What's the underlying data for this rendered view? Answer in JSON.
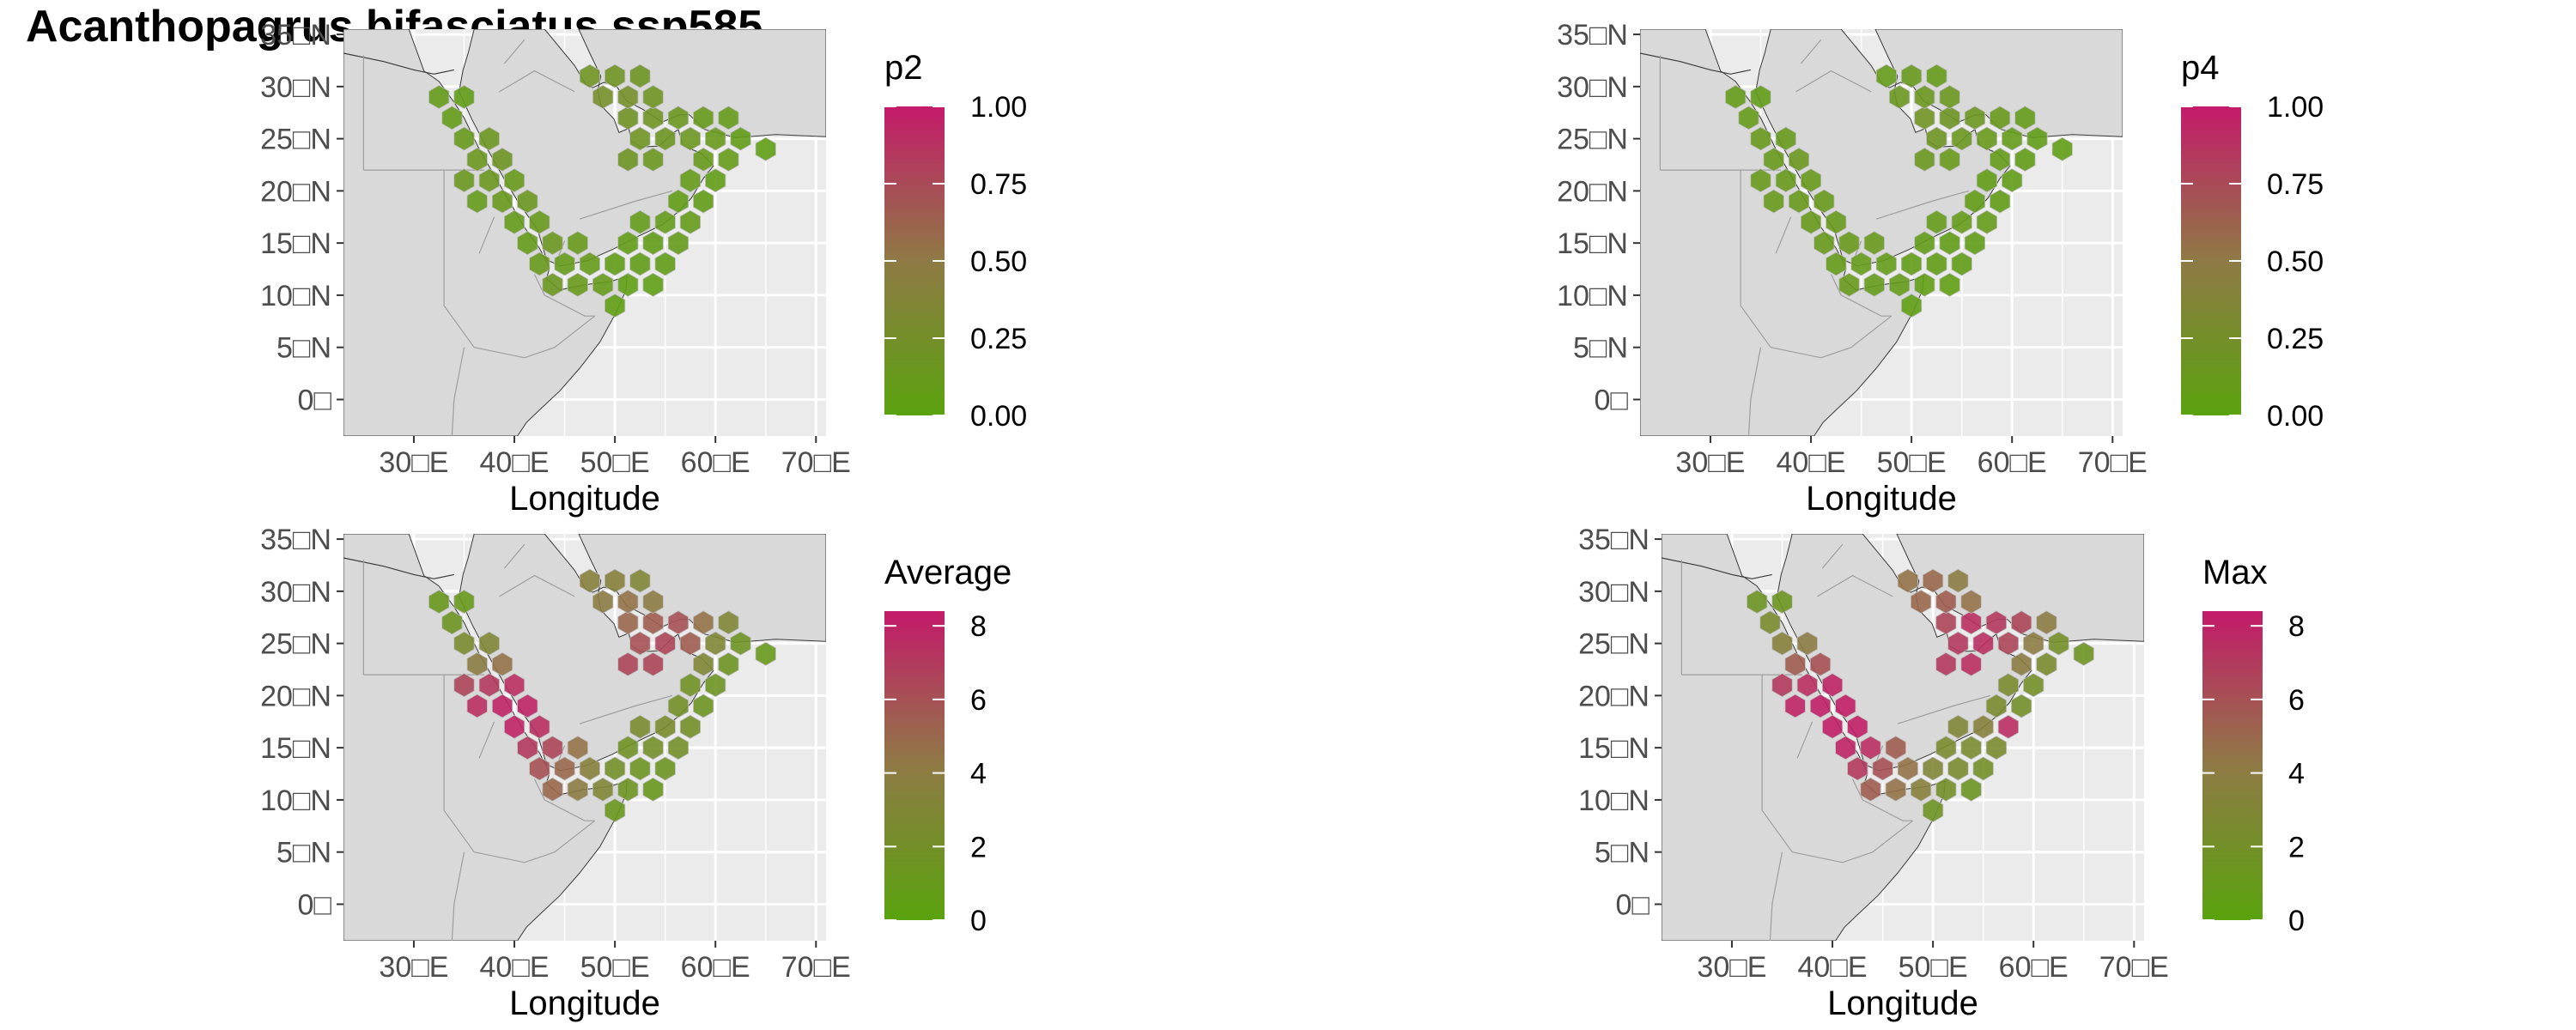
{
  "title": "Acanthopagrus bifasciatus ssp585",
  "axes": {
    "xlabel": "Longitude",
    "x_ticks": [
      "30□E",
      "40□E",
      "50□E",
      "60□E",
      "70□E"
    ],
    "y_ticks": [
      "35□N",
      "30□N",
      "25□N",
      "20□N",
      "15□N",
      "10□N",
      "5□N",
      "0□"
    ],
    "xlim": [
      23,
      71
    ],
    "ylim": [
      -3.5,
      35.5
    ]
  },
  "colors": {
    "low": "#5aa30e",
    "mid": "#8f7a45",
    "high": "#c41a6a",
    "land": "#d9d9d9",
    "ocean": "#ebebeb",
    "grid": "#ffffff",
    "border": "#9e9e9e",
    "coast": "#3a3a3a"
  },
  "panels": [
    {
      "id": "p2",
      "legend_title": "p2",
      "legend_labels": [
        "1.00",
        "0.75",
        "0.50",
        "0.25",
        "0.00"
      ],
      "value_range": [
        0,
        1
      ]
    },
    {
      "id": "p4",
      "legend_title": "p4",
      "legend_labels": [
        "1.00",
        "0.75",
        "0.50",
        "0.25",
        "0.00"
      ],
      "value_range": [
        0,
        1
      ]
    },
    {
      "id": "average",
      "legend_title": "Average",
      "legend_labels": [
        "8",
        "6",
        "4",
        "2",
        "0"
      ],
      "value_range": [
        0,
        8.4
      ]
    },
    {
      "id": "max",
      "legend_title": "Max",
      "legend_labels": [
        "8",
        "6",
        "4",
        "2",
        "0"
      ],
      "value_range": [
        0,
        8.4
      ]
    }
  ],
  "chart_data": {
    "type": "heatmap",
    "cell_shape": "hexagon",
    "cells": [
      {
        "lon": 32.5,
        "lat": 29.0,
        "p2": 0.1,
        "p4": 0.1,
        "average": 1.2,
        "max": 1.6
      },
      {
        "lon": 35.0,
        "lat": 29.0,
        "p2": 0.08,
        "p4": 0.08,
        "average": 1.0,
        "max": 1.4
      },
      {
        "lon": 33.8,
        "lat": 27.0,
        "p2": 0.1,
        "p4": 0.1,
        "average": 1.5,
        "max": 2.5
      },
      {
        "lon": 35.0,
        "lat": 25.0,
        "p2": 0.12,
        "p4": 0.12,
        "average": 2.5,
        "max": 3.5
      },
      {
        "lon": 37.5,
        "lat": 25.0,
        "p2": 0.15,
        "p4": 0.12,
        "average": 3.0,
        "max": 4.0
      },
      {
        "lon": 36.3,
        "lat": 23.0,
        "p2": 0.15,
        "p4": 0.12,
        "average": 4.0,
        "max": 5.5
      },
      {
        "lon": 38.8,
        "lat": 23.0,
        "p2": 0.18,
        "p4": 0.15,
        "average": 4.5,
        "max": 6.0
      },
      {
        "lon": 35.0,
        "lat": 21.0,
        "p2": 0.15,
        "p4": 0.12,
        "average": 6.5,
        "max": 7.0
      },
      {
        "lon": 37.5,
        "lat": 21.0,
        "p2": 0.15,
        "p4": 0.12,
        "average": 7.0,
        "max": 7.5
      },
      {
        "lon": 40.0,
        "lat": 21.0,
        "p2": 0.12,
        "p4": 0.12,
        "average": 7.5,
        "max": 8.0
      },
      {
        "lon": 36.3,
        "lat": 19.0,
        "p2": 0.1,
        "p4": 0.12,
        "average": 7.5,
        "max": 8.0
      },
      {
        "lon": 38.8,
        "lat": 19.0,
        "p2": 0.12,
        "p4": 0.12,
        "average": 8.0,
        "max": 8.2
      },
      {
        "lon": 41.3,
        "lat": 19.0,
        "p2": 0.15,
        "p4": 0.12,
        "average": 8.0,
        "max": 8.2
      },
      {
        "lon": 40.0,
        "lat": 17.0,
        "p2": 0.1,
        "p4": 0.12,
        "average": 8.0,
        "max": 8.2
      },
      {
        "lon": 42.5,
        "lat": 17.0,
        "p2": 0.12,
        "p4": 0.12,
        "average": 7.5,
        "max": 8.2
      },
      {
        "lon": 41.3,
        "lat": 15.0,
        "p2": 0.1,
        "p4": 0.12,
        "average": 7.0,
        "max": 8.0
      },
      {
        "lon": 43.8,
        "lat": 15.0,
        "p2": 0.15,
        "p4": 0.12,
        "average": 6.5,
        "max": 7.5
      },
      {
        "lon": 46.3,
        "lat": 15.0,
        "p2": 0.12,
        "p4": 0.12,
        "average": 4.5,
        "max": 5.5
      },
      {
        "lon": 42.5,
        "lat": 13.0,
        "p2": 0.12,
        "p4": 0.1,
        "average": 6.0,
        "max": 7.0
      },
      {
        "lon": 45.0,
        "lat": 13.0,
        "p2": 0.1,
        "p4": 0.1,
        "average": 5.0,
        "max": 6.0
      },
      {
        "lon": 47.5,
        "lat": 13.0,
        "p2": 0.1,
        "p4": 0.1,
        "average": 3.5,
        "max": 4.5
      },
      {
        "lon": 43.8,
        "lat": 11.0,
        "p2": 0.15,
        "p4": 0.12,
        "average": 5.0,
        "max": 5.5
      },
      {
        "lon": 46.3,
        "lat": 11.0,
        "p2": 0.12,
        "p4": 0.1,
        "average": 4.0,
        "max": 4.5
      },
      {
        "lon": 48.8,
        "lat": 11.0,
        "p2": 0.1,
        "p4": 0.1,
        "average": 3.0,
        "max": 3.5
      },
      {
        "lon": 50.0,
        "lat": 13.0,
        "p2": 0.08,
        "p4": 0.08,
        "average": 2.0,
        "max": 3.0
      },
      {
        "lon": 51.3,
        "lat": 11.0,
        "p2": 0.06,
        "p4": 0.06,
        "average": 1.5,
        "max": 2.0
      },
      {
        "lon": 52.5,
        "lat": 13.0,
        "p2": 0.08,
        "p4": 0.08,
        "average": 1.5,
        "max": 2.5
      },
      {
        "lon": 55.0,
        "lat": 13.0,
        "p2": 0.08,
        "p4": 0.08,
        "average": 1.5,
        "max": 2.0
      },
      {
        "lon": 50.0,
        "lat": 9.0,
        "p2": 0.06,
        "p4": 0.06,
        "average": 1.2,
        "max": 1.6
      },
      {
        "lon": 53.8,
        "lat": 11.0,
        "p2": 0.06,
        "p4": 0.06,
        "average": 1.2,
        "max": 1.6
      },
      {
        "lon": 51.3,
        "lat": 15.0,
        "p2": 0.08,
        "p4": 0.08,
        "average": 1.8,
        "max": 2.5
      },
      {
        "lon": 53.8,
        "lat": 15.0,
        "p2": 0.08,
        "p4": 0.08,
        "average": 2.0,
        "max": 2.5
      },
      {
        "lon": 56.3,
        "lat": 15.0,
        "p2": 0.1,
        "p4": 0.08,
        "average": 2.0,
        "max": 2.5
      },
      {
        "lon": 52.5,
        "lat": 17.0,
        "p2": 0.1,
        "p4": 0.1,
        "average": 2.5,
        "max": 3.0
      },
      {
        "lon": 55.0,
        "lat": 17.0,
        "p2": 0.1,
        "p4": 0.1,
        "average": 2.5,
        "max": 3.5
      },
      {
        "lon": 57.5,
        "lat": 17.0,
        "p2": 0.1,
        "p4": 0.1,
        "average": 2.0,
        "max": 7.5
      },
      {
        "lon": 56.3,
        "lat": 19.0,
        "p2": 0.08,
        "p4": 0.08,
        "average": 2.0,
        "max": 2.5
      },
      {
        "lon": 58.8,
        "lat": 19.0,
        "p2": 0.08,
        "p4": 0.08,
        "average": 1.5,
        "max": 2.0
      },
      {
        "lon": 57.5,
        "lat": 21.0,
        "p2": 0.1,
        "p4": 0.08,
        "average": 1.8,
        "max": 2.5
      },
      {
        "lon": 60.0,
        "lat": 21.0,
        "p2": 0.08,
        "p4": 0.08,
        "average": 1.5,
        "max": 2.0
      },
      {
        "lon": 58.8,
        "lat": 23.0,
        "p2": 0.12,
        "p4": 0.1,
        "average": 3.0,
        "max": 4.0
      },
      {
        "lon": 61.3,
        "lat": 23.0,
        "p2": 0.1,
        "p4": 0.08,
        "average": 1.5,
        "max": 2.5
      },
      {
        "lon": 57.5,
        "lat": 25.0,
        "p2": 0.15,
        "p4": 0.12,
        "average": 5.5,
        "max": 6.5
      },
      {
        "lon": 60.0,
        "lat": 25.0,
        "p2": 0.12,
        "p4": 0.1,
        "average": 3.0,
        "max": 4.0
      },
      {
        "lon": 62.5,
        "lat": 25.0,
        "p2": 0.08,
        "p4": 0.08,
        "average": 1.5,
        "max": 2.0
      },
      {
        "lon": 65.0,
        "lat": 24.0,
        "p2": 0.06,
        "p4": 0.06,
        "average": 1.0,
        "max": 1.5
      },
      {
        "lon": 56.3,
        "lat": 27.0,
        "p2": 0.15,
        "p4": 0.15,
        "average": 6.0,
        "max": 7.0
      },
      {
        "lon": 58.8,
        "lat": 27.0,
        "p2": 0.12,
        "p4": 0.12,
        "average": 4.5,
        "max": 6.5
      },
      {
        "lon": 61.3,
        "lat": 27.0,
        "p2": 0.1,
        "p4": 0.1,
        "average": 3.0,
        "max": 4.0
      },
      {
        "lon": 55.0,
        "lat": 25.0,
        "p2": 0.18,
        "p4": 0.15,
        "average": 6.5,
        "max": 7.5
      },
      {
        "lon": 52.5,
        "lat": 25.0,
        "p2": 0.2,
        "p4": 0.18,
        "average": 6.0,
        "max": 7.0
      },
      {
        "lon": 53.8,
        "lat": 27.0,
        "p2": 0.2,
        "p4": 0.18,
        "average": 5.5,
        "max": 7.5
      },
      {
        "lon": 51.3,
        "lat": 27.0,
        "p2": 0.22,
        "p4": 0.2,
        "average": 5.0,
        "max": 6.5
      },
      {
        "lon": 53.8,
        "lat": 23.0,
        "p2": 0.15,
        "p4": 0.12,
        "average": 6.5,
        "max": 7.5
      },
      {
        "lon": 51.3,
        "lat": 23.0,
        "p2": 0.18,
        "p4": 0.15,
        "average": 6.5,
        "max": 7.0
      },
      {
        "lon": 48.8,
        "lat": 29.0,
        "p2": 0.25,
        "p4": 0.15,
        "average": 4.0,
        "max": 5.0
      },
      {
        "lon": 51.3,
        "lat": 29.0,
        "p2": 0.25,
        "p4": 0.15,
        "average": 4.5,
        "max": 5.5
      },
      {
        "lon": 53.8,
        "lat": 29.0,
        "p2": 0.2,
        "p4": 0.15,
        "average": 4.0,
        "max": 4.5
      },
      {
        "lon": 50.0,
        "lat": 31.0,
        "p2": 0.2,
        "p4": 0.12,
        "average": 3.5,
        "max": 5.0
      },
      {
        "lon": 52.5,
        "lat": 31.0,
        "p2": 0.18,
        "p4": 0.1,
        "average": 3.0,
        "max": 4.0
      },
      {
        "lon": 47.5,
        "lat": 31.0,
        "p2": 0.2,
        "p4": 0.1,
        "average": 3.5,
        "max": 4.5
      }
    ]
  }
}
